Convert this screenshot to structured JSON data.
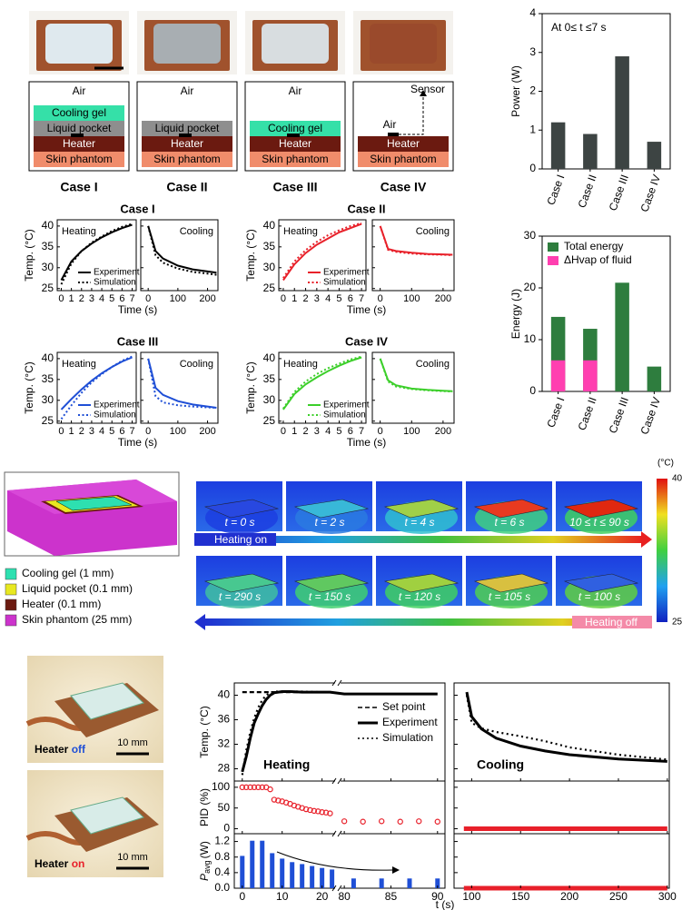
{
  "chart_data": [
    {
      "type": "bar",
      "ylabel": "Power (W)",
      "annotation": "At 0≤ t ≤7 s",
      "categories": [
        "Case I",
        "Case II",
        "Case III",
        "Case IV"
      ],
      "values": [
        1.2,
        0.9,
        2.9,
        0.7
      ],
      "color": "#3d4443",
      "ylim": [
        0,
        4
      ],
      "yticks": [
        0,
        1,
        2,
        3,
        4
      ]
    },
    {
      "type": "bar",
      "ylabel": "Energy (J)",
      "categories": [
        "Case I",
        "Case II",
        "Case III",
        "Case IV"
      ],
      "series": [
        {
          "name": "Total energy",
          "color": "#2e7d3e",
          "values": [
            14.4,
            12.1,
            21,
            4.8
          ]
        },
        {
          "name": "ΔHvap of fluid",
          "color": "#ff3fb0",
          "values": [
            6,
            6,
            0,
            0
          ]
        }
      ],
      "ylim": [
        0,
        30
      ],
      "yticks": [
        0,
        10,
        20,
        30
      ]
    },
    {
      "type": "line",
      "title": "Case I",
      "ylabel": "Temp. (°C)",
      "xlabel": "Time (s)",
      "ylim": [
        24.5,
        41.5
      ],
      "yticks": [
        25,
        30,
        35,
        40
      ],
      "panels": [
        {
          "label": "Heating",
          "x": [
            0,
            1,
            2,
            3,
            4,
            5,
            6,
            7
          ],
          "xlim": [
            -0.4,
            7.4
          ],
          "xticks": [
            0,
            1,
            2,
            3,
            4,
            5,
            6,
            7
          ],
          "series": [
            {
              "name": "Experiment",
              "color": "#000000",
              "style": "solid",
              "values": [
                27,
                31.5,
                34,
                35.8,
                37.3,
                38.5,
                39.5,
                40.3
              ]
            },
            {
              "name": "Simulation",
              "color": "#000000",
              "style": "dotted",
              "values": [
                26,
                31,
                34,
                36,
                37.5,
                38.8,
                39.8,
                40.5
              ]
            }
          ]
        },
        {
          "label": "Cooling",
          "x": [
            0,
            25,
            50,
            100,
            150,
            200,
            230
          ],
          "xlim": [
            -25,
            235
          ],
          "xticks": [
            0,
            100,
            200
          ],
          "series": [
            {
              "color": "#000000",
              "style": "solid",
              "values": [
                40,
                34,
                32.2,
                30.5,
                29.6,
                29.1,
                28.8
              ]
            },
            {
              "color": "#000000",
              "style": "dotted",
              "values": [
                40,
                33,
                31.2,
                29.8,
                29,
                28.6,
                28.3
              ]
            }
          ]
        }
      ]
    },
    {
      "type": "line",
      "title": "Case II",
      "ylabel": "Temp. (°C)",
      "xlabel": "Time (s)",
      "ylim": [
        24.5,
        41.5
      ],
      "yticks": [
        25,
        30,
        35,
        40
      ],
      "panels": [
        {
          "label": "Heating",
          "x": [
            0,
            1,
            2,
            3,
            4,
            5,
            6,
            7
          ],
          "xlim": [
            -0.4,
            7.4
          ],
          "xticks": [
            0,
            1,
            2,
            3,
            4,
            5,
            6,
            7
          ],
          "series": [
            {
              "name": "Experiment",
              "color": "#e8212a",
              "style": "solid",
              "values": [
                27,
                30.8,
                33.5,
                35.5,
                37,
                38.5,
                39.5,
                40.5
              ]
            },
            {
              "name": "Simulation",
              "color": "#e8212a",
              "style": "dotted",
              "values": [
                27.5,
                31.5,
                34.2,
                36.2,
                37.8,
                39,
                40,
                40.7
              ]
            }
          ]
        },
        {
          "label": "Cooling",
          "x": [
            0,
            25,
            50,
            100,
            150,
            200,
            230
          ],
          "xlim": [
            -25,
            235
          ],
          "xticks": [
            0,
            100,
            200
          ],
          "series": [
            {
              "color": "#e8212a",
              "style": "solid",
              "values": [
                40,
                34.5,
                34,
                33.6,
                33.3,
                33.2,
                33.1
              ]
            },
            {
              "color": "#e8212a",
              "style": "dotted",
              "values": [
                40,
                34.3,
                33.8,
                33.4,
                33.2,
                33.1,
                33
              ]
            }
          ]
        }
      ]
    },
    {
      "type": "line",
      "title": "Case III",
      "ylabel": "Temp. (°C)",
      "xlabel": "Time (s)",
      "ylim": [
        24.5,
        41.5
      ],
      "yticks": [
        25,
        30,
        35,
        40
      ],
      "panels": [
        {
          "label": "Heating",
          "x": [
            0,
            1,
            2,
            3,
            4,
            5,
            6,
            7
          ],
          "xlim": [
            -0.4,
            7.4
          ],
          "xticks": [
            0,
            1,
            2,
            3,
            4,
            5,
            6,
            7
          ],
          "series": [
            {
              "name": "Experiment",
              "color": "#1f4fd6",
              "style": "solid",
              "values": [
                27.8,
                30.3,
                32.6,
                34.7,
                36.5,
                38,
                39.3,
                40.3
              ]
            },
            {
              "name": "Simulation",
              "color": "#1f4fd6",
              "style": "dotted",
              "values": [
                25.5,
                28.8,
                31.8,
                34.3,
                36.3,
                38,
                39.5,
                40.5
              ]
            }
          ]
        },
        {
          "label": "Cooling",
          "x": [
            0,
            25,
            50,
            100,
            150,
            200,
            230
          ],
          "xlim": [
            -25,
            235
          ],
          "xticks": [
            0,
            100,
            200
          ],
          "series": [
            {
              "color": "#1f4fd6",
              "style": "solid",
              "values": [
                40,
                33,
                31.3,
                29.8,
                29,
                28.5,
                28.2
              ]
            },
            {
              "color": "#1f4fd6",
              "style": "dotted",
              "values": [
                40,
                31,
                29.5,
                28.8,
                28.5,
                28.3,
                28.2
              ]
            }
          ]
        }
      ]
    },
    {
      "type": "line",
      "title": "Case IV",
      "ylabel": "Temp. (°C)",
      "xlabel": "Time (s)",
      "ylim": [
        24.5,
        41.5
      ],
      "yticks": [
        25,
        30,
        35,
        40
      ],
      "panels": [
        {
          "label": "Heating",
          "x": [
            0,
            1,
            2,
            3,
            4,
            5,
            6,
            7
          ],
          "xlim": [
            -0.4,
            7.4
          ],
          "xticks": [
            0,
            1,
            2,
            3,
            4,
            5,
            6,
            7
          ],
          "series": [
            {
              "name": "Experiment",
              "color": "#3ccf2a",
              "style": "solid",
              "values": [
                27.8,
                31.5,
                33.8,
                35.5,
                37,
                38.3,
                39.4,
                40.3
              ]
            },
            {
              "name": "Simulation",
              "color": "#3ccf2a",
              "style": "dotted",
              "values": [
                28,
                32,
                34.5,
                36.3,
                37.7,
                38.8,
                39.8,
                40.5
              ]
            }
          ]
        },
        {
          "label": "Cooling",
          "x": [
            0,
            25,
            50,
            100,
            150,
            200,
            230
          ],
          "xlim": [
            -25,
            235
          ],
          "xticks": [
            0,
            100,
            200
          ],
          "series": [
            {
              "color": "#3ccf2a",
              "style": "solid",
              "values": [
                40,
                34.8,
                33.6,
                32.8,
                32.5,
                32.3,
                32.2
              ]
            },
            {
              "color": "#3ccf2a",
              "style": "dotted",
              "values": [
                40,
                34.5,
                33.3,
                32.7,
                32.4,
                32.2,
                32.1
              ]
            }
          ]
        }
      ]
    },
    {
      "type": "pid",
      "xlabel": "t (s)",
      "panel_labels": [
        "Heating",
        "Cooling"
      ],
      "heating_xsegments": [
        [
          -2,
          23.5
        ],
        [
          79.5,
          90.8
        ]
      ],
      "heating_xticks": [
        0,
        10,
        20,
        80,
        85,
        90
      ],
      "cooling_xlim": [
        82,
        302
      ],
      "cooling_xticks": [
        100,
        150,
        200,
        250,
        300
      ],
      "rows": [
        {
          "ylabel": "Temp. (°C)",
          "ylim": [
            26,
            42
          ],
          "yticks": [
            28,
            32,
            36,
            40
          ],
          "series": [
            {
              "name": "Set point",
              "color": "#000000",
              "style": "dashed",
              "heating_x": [
                0,
                22
              ],
              "heating_values": [
                40.5,
                40.5
              ]
            },
            {
              "name": "Experiment",
              "color": "#000000",
              "style": "solid",
              "heating_x": [
                0,
                1,
                2,
                3,
                4,
                5,
                6,
                7,
                8,
                10,
                12,
                15,
                20,
                22,
                80,
                85,
                90
              ],
              "heating_values": [
                27.5,
                30,
                33,
                35.5,
                37,
                38.3,
                39.3,
                40,
                40.4,
                40.6,
                40.6,
                40.5,
                40.5,
                40.5,
                40.2,
                40.2,
                40.2
              ],
              "cooling_x": [
                95,
                100,
                110,
                125,
                150,
                175,
                200,
                250,
                300
              ],
              "cooling_values": [
                40.5,
                36.5,
                34.5,
                33,
                31.7,
                30.9,
                30.3,
                29.6,
                29.2
              ]
            },
            {
              "name": "Simulation",
              "color": "#000000",
              "style": "dotted",
              "heating_x": [
                0,
                1,
                2,
                3,
                4,
                5,
                6,
                7,
                8,
                10,
                12,
                15,
                20,
                22
              ],
              "heating_values": [
                27,
                31,
                34,
                36.3,
                38,
                39.2,
                40,
                40.4,
                40.6,
                40.6,
                40.6,
                40.6,
                40.5,
                40.5
              ],
              "cooling_x": [
                95,
                100,
                110,
                125,
                150,
                175,
                200,
                250,
                300
              ],
              "cooling_values": [
                40,
                35.5,
                34.6,
                34,
                33.3,
                32.5,
                31.5,
                30.3,
                29.5
              ]
            }
          ]
        },
        {
          "ylabel": "PID (%)",
          "ylim": [
            -12,
            115
          ],
          "yticks": [
            0,
            50,
            100
          ],
          "series": [
            {
              "color": "#e8202a",
              "heating_style": "circles",
              "cooling_style": "band",
              "heating_x": [
                0,
                1,
                2,
                3,
                4,
                5,
                6,
                7,
                8,
                9,
                10,
                11,
                12,
                13,
                14,
                15,
                16,
                17,
                18,
                19,
                20,
                21,
                22,
                80,
                82,
                84,
                86,
                88,
                90
              ],
              "heating_values": [
                100,
                100,
                100,
                100,
                100,
                100,
                100,
                95,
                70,
                68,
                66,
                63,
                60,
                56,
                53,
                50,
                47,
                45,
                43,
                42,
                40,
                39,
                37,
                18,
                17,
                18,
                17,
                18,
                17
              ],
              "cooling_x": [
                92,
                300
              ],
              "cooling_values": [
                0,
                0
              ]
            }
          ]
        },
        {
          "ylabel": "P",
          "ylabel_sub": "avg",
          "ylabel_unit": "(W)",
          "ylim": [
            0,
            1.4
          ],
          "yticks": [
            {
              "value": 0,
              "label": "0.0"
            },
            0.4,
            0.8,
            1.2
          ],
          "series": [
            {
              "color": "#1f4fd6",
              "heating_style": "bars",
              "heating_x": [
                0,
                2.5,
                5,
                7.5,
                10,
                12.5,
                15,
                17.5,
                20,
                22.5,
                81,
                84,
                87,
                90
              ],
              "heating_values": [
                0.83,
                1.22,
                1.22,
                0.9,
                0.76,
                0.67,
                0.62,
                0.57,
                0.52,
                0.48,
                0.25,
                0.25,
                0.25,
                0.25
              ]
            },
            {
              "color": "#e8202a",
              "cooling_style": "band",
              "cooling_x": [
                92,
                300
              ],
              "cooling_values": [
                0,
                0
              ]
            }
          ]
        }
      ]
    }
  ],
  "case_diagrams": [
    {
      "label": "Case I",
      "air": "Air",
      "layers": [
        {
          "text": "Cooling gel",
          "color": "#35e0a8"
        },
        {
          "text": "Liquid pocket",
          "color": "#8e8e8e"
        },
        {
          "text": "Heater",
          "color": "#6b1a10"
        },
        {
          "text": "Skin phantom",
          "color": "#f08c6b"
        }
      ]
    },
    {
      "label": "Case II",
      "air": "Air",
      "layers": [
        {
          "text": "Liquid pocket",
          "color": "#8e8e8e"
        },
        {
          "text": "Heater",
          "color": "#6b1a10"
        },
        {
          "text": "Skin phantom",
          "color": "#f08c6b"
        }
      ]
    },
    {
      "label": "Case III",
      "air": "Air",
      "layers": [
        {
          "text": "Cooling gel",
          "color": "#35e0a8"
        },
        {
          "text": "Heater",
          "color": "#6b1a10"
        },
        {
          "text": "Skin phantom",
          "color": "#f08c6b"
        }
      ]
    },
    {
      "label": "Case IV",
      "air": "Air",
      "sensor": "Sensor",
      "layers": [
        {
          "text": "Heater",
          "color": "#6b1a10"
        },
        {
          "text": "Skin phantom",
          "color": "#f08c6b"
        }
      ]
    }
  ],
  "simulation": {
    "materials": [
      {
        "text": "Cooling gel (1 mm)",
        "color": "#2de0b0"
      },
      {
        "text": "Liquid pocket (0.1 mm)",
        "color": "#e8e820"
      },
      {
        "text": "Heater (0.1 mm)",
        "color": "#6b1a10"
      },
      {
        "text": "Skin phantom (25 mm)",
        "color": "#cc33cc"
      }
    ],
    "heating_frames": [
      "t = 0 s",
      "t = 2 s",
      "t = 4 s",
      "t = 6 s",
      "10 ≤ t ≤ 90 s"
    ],
    "cooling_frames": [
      "t = 290 s",
      "t = 150 s",
      "t = 120 s",
      "t = 105 s",
      "t = 100 s"
    ],
    "heating_arrow": "Heating on",
    "cooling_arrow": "Heating off",
    "colorbar": {
      "unit": "(°C)",
      "max": 40,
      "min": 25
    }
  },
  "photos": {
    "scale": "10 mm",
    "off": {
      "prefix": "Heater",
      "state": "off"
    },
    "on": {
      "prefix": "Heater",
      "state": "on"
    }
  }
}
